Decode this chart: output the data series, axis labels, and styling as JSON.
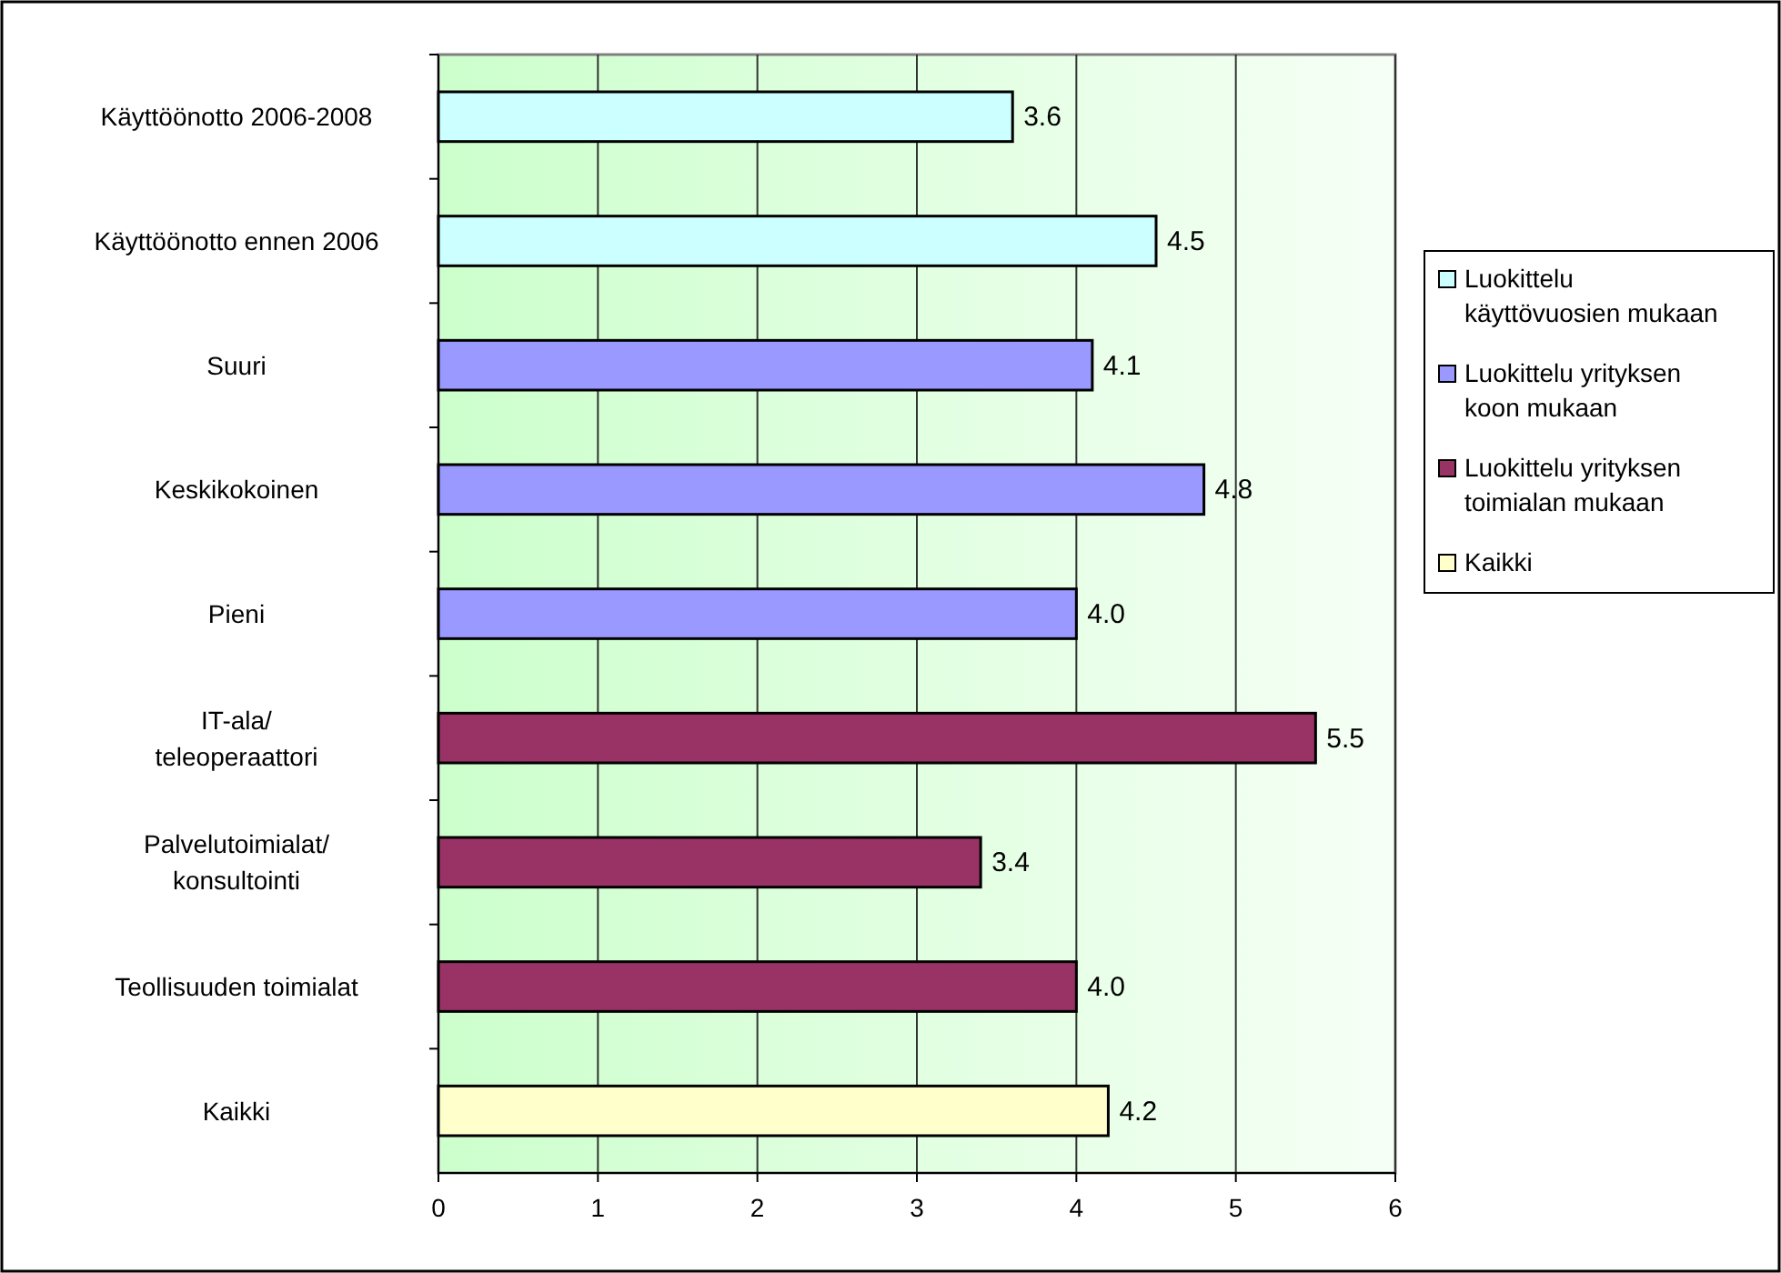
{
  "chart_data": {
    "type": "bar",
    "orientation": "horizontal",
    "categories": [
      "Käyttöönotto 2006-2008",
      "Käyttöönotto ennen 2006",
      "Suuri",
      "Keskikokoinen",
      "Pieni",
      "IT-ala/\nteleoperaattori",
      "Palvelutoimialat/\nkonsultointi",
      "Teollisuuden toimialat",
      "Kaikki"
    ],
    "series": [
      {
        "name": "Luokittelu käyttövuosien mukaan",
        "color": "#ccffff",
        "values": [
          3.6,
          4.5,
          null,
          null,
          null,
          null,
          null,
          null,
          null
        ]
      },
      {
        "name": "Luokittelu yrityksen koon mukaan",
        "color": "#9999ff",
        "values": [
          null,
          null,
          4.1,
          4.8,
          4.0,
          null,
          null,
          null,
          null
        ],
        "value_labels": [
          null,
          null,
          "4.1",
          "4.8",
          "4.0",
          null,
          null,
          null,
          null
        ]
      },
      {
        "name": "Luokittelu yrityksen toimialan mukaan",
        "color": "#993366",
        "values": [
          null,
          null,
          null,
          null,
          null,
          5.5,
          3.4,
          4.0,
          null
        ],
        "value_labels": [
          null,
          null,
          null,
          null,
          null,
          "5.5",
          "3.4",
          "4.0",
          null
        ]
      },
      {
        "name": "Kaikki",
        "color": "#ffffcc",
        "values": [
          null,
          null,
          null,
          null,
          null,
          null,
          null,
          null,
          4.2
        ]
      }
    ],
    "xlim": [
      0,
      6
    ],
    "xticks": [
      0,
      1,
      2,
      3,
      4,
      5,
      6
    ],
    "grid": "x",
    "legend": "right",
    "data_labels": true
  }
}
